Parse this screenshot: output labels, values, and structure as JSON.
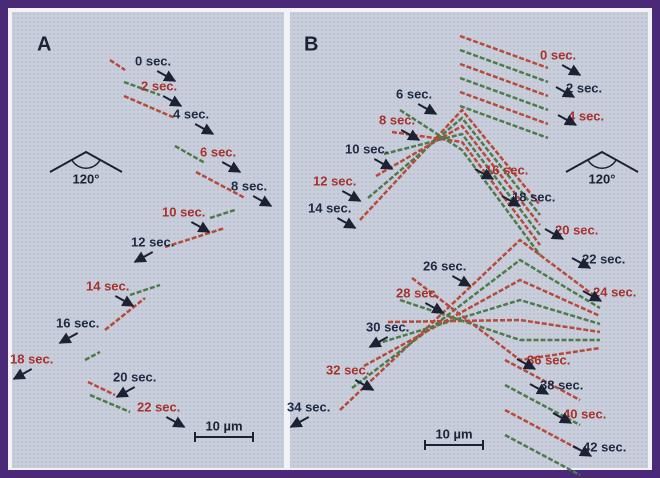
{
  "panels": [
    {
      "label": "A",
      "angle": "120°",
      "scale": "10 µm",
      "times": [
        {
          "text": "0 sec.",
          "color": "#1e2a44"
        },
        {
          "text": "2 sec.",
          "color": "#a8322c"
        },
        {
          "text": "4 sec.",
          "color": "#1e2a44"
        },
        {
          "text": "6 sec.",
          "color": "#a8322c"
        },
        {
          "text": "8 sec.",
          "color": "#1e2a44"
        },
        {
          "text": "10 sec.",
          "color": "#a8322c"
        },
        {
          "text": "12 sec.",
          "color": "#1e2a44"
        },
        {
          "text": "14 sec.",
          "color": "#a8322c"
        },
        {
          "text": "16 sec.",
          "color": "#1e2a44"
        },
        {
          "text": "18 sec.",
          "color": "#a8322c"
        },
        {
          "text": "20 sec.",
          "color": "#1e2a44"
        },
        {
          "text": "22 sec.",
          "color": "#a8322c"
        }
      ]
    },
    {
      "label": "B",
      "angle": "120°",
      "scale": "10 µm",
      "times": [
        {
          "text": "0 sec.",
          "color": "#a8322c"
        },
        {
          "text": "2 sec.",
          "color": "#1e2a44"
        },
        {
          "text": "4 sec.",
          "color": "#a8322c"
        },
        {
          "text": "6 sec.",
          "color": "#1e2a44"
        },
        {
          "text": "8 sec.",
          "color": "#a8322c"
        },
        {
          "text": "10 sec.",
          "color": "#1e2a44"
        },
        {
          "text": "12 sec.",
          "color": "#a8322c"
        },
        {
          "text": "14 sec.",
          "color": "#1e2a44"
        },
        {
          "text": "16 sec.",
          "color": "#a8322c"
        },
        {
          "text": "18 sec.",
          "color": "#1e2a44"
        },
        {
          "text": "20 sec.",
          "color": "#a8322c"
        },
        {
          "text": "22 sec.",
          "color": "#1e2a44"
        },
        {
          "text": "24 sec.",
          "color": "#a8322c"
        },
        {
          "text": "26 sec.",
          "color": "#1e2a44"
        },
        {
          "text": "28 sec.",
          "color": "#a8322c"
        },
        {
          "text": "30 sec.",
          "color": "#1e2a44"
        },
        {
          "text": "32 sec.",
          "color": "#a8322c"
        },
        {
          "text": "34 sec.",
          "color": "#1e2a44"
        },
        {
          "text": "36 sec.",
          "color": "#a8322c"
        },
        {
          "text": "38 sec.",
          "color": "#1e2a44"
        },
        {
          "text": "40 sec.",
          "color": "#a8322c"
        },
        {
          "text": "42 sec.",
          "color": "#1e2a44"
        }
      ]
    }
  ]
}
